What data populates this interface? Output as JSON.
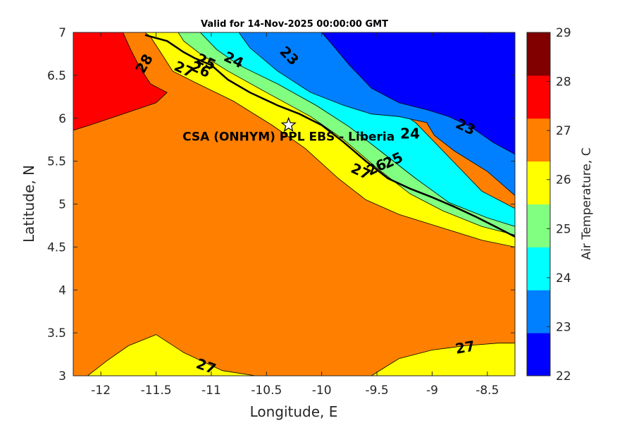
{
  "title": "Valid for 14-Nov-2025 00:00:00 GMT",
  "map": {
    "xlabel": "Longitude, E",
    "ylabel": "Latitude, N",
    "xlim": [
      -12.25,
      -8.25
    ],
    "ylim": [
      3,
      7
    ],
    "x_ticks": [
      -12,
      -11.5,
      -11,
      -10.5,
      -10,
      -9.5,
      -9,
      -8.5
    ],
    "x_tick_labels": [
      "-12",
      "-11.5",
      "-11",
      "-10.5",
      "-10",
      "-9.5",
      "-9",
      "-8.5"
    ],
    "y_ticks": [
      3,
      3.5,
      4,
      4.5,
      5,
      5.5,
      6,
      6.5,
      7
    ],
    "y_tick_labels": [
      "3",
      "3.5",
      "4",
      "4.5",
      "5",
      "5.5",
      "6",
      "6.5",
      "7"
    ],
    "background_color": "#ff8000",
    "field": "Air Temperature, C",
    "regions": [
      {
        "level": "26-27",
        "color": "#ffff00",
        "points": [
          [
            -12.25,
            3.0
          ],
          [
            -12.12,
            3.0
          ],
          [
            -11.95,
            3.17
          ],
          [
            -11.75,
            3.35
          ],
          [
            -11.5,
            3.48
          ],
          [
            -11.25,
            3.27
          ],
          [
            -10.9,
            3.06
          ],
          [
            -10.6,
            3.0
          ]
        ]
      },
      {
        "level": "26-27",
        "color": "#ffff00",
        "points": [
          [
            -9.55,
            3.0
          ],
          [
            -9.3,
            3.2
          ],
          [
            -9.0,
            3.3
          ],
          [
            -8.7,
            3.35
          ],
          [
            -8.4,
            3.38
          ],
          [
            -8.25,
            3.38
          ],
          [
            -8.25,
            3.0
          ]
        ]
      },
      {
        "level": "27-28",
        "color": "#ff0000",
        "points": [
          [
            -12.25,
            7.0
          ],
          [
            -11.8,
            7.0
          ],
          [
            -11.73,
            6.8
          ],
          [
            -11.65,
            6.6
          ],
          [
            -11.55,
            6.4
          ],
          [
            -11.4,
            6.3
          ],
          [
            -11.5,
            6.18
          ],
          [
            -11.8,
            6.05
          ],
          [
            -12.1,
            5.92
          ],
          [
            -12.25,
            5.86
          ]
        ]
      },
      {
        "level": "26-27",
        "color": "#ffff00",
        "points": [
          [
            -11.6,
            7.0
          ],
          [
            -10.3,
            7.0
          ],
          [
            -10.0,
            6.6
          ],
          [
            -9.7,
            6.2
          ],
          [
            -9.4,
            5.85
          ],
          [
            -9.1,
            5.5
          ],
          [
            -8.8,
            5.15
          ],
          [
            -8.5,
            4.85
          ],
          [
            -8.25,
            4.7
          ],
          [
            -8.25,
            4.5
          ],
          [
            -8.55,
            4.58
          ],
          [
            -8.9,
            4.72
          ],
          [
            -9.3,
            4.88
          ],
          [
            -9.6,
            5.05
          ],
          [
            -9.85,
            5.3
          ],
          [
            -10.15,
            5.65
          ],
          [
            -10.45,
            5.92
          ],
          [
            -10.8,
            6.2
          ],
          [
            -11.15,
            6.42
          ],
          [
            -11.35,
            6.55
          ],
          [
            -11.45,
            6.75
          ],
          [
            -11.55,
            6.95
          ]
        ]
      },
      {
        "level": "25-26",
        "color": "#80ff80",
        "points": [
          [
            -11.3,
            7.0
          ],
          [
            -10.2,
            7.0
          ],
          [
            -9.9,
            6.6
          ],
          [
            -9.6,
            6.2
          ],
          [
            -9.3,
            5.85
          ],
          [
            -9.0,
            5.5
          ],
          [
            -8.7,
            5.15
          ],
          [
            -8.4,
            4.85
          ],
          [
            -8.25,
            4.78
          ],
          [
            -8.25,
            4.64
          ],
          [
            -8.55,
            4.74
          ],
          [
            -8.9,
            4.92
          ],
          [
            -9.2,
            5.12
          ],
          [
            -9.5,
            5.42
          ],
          [
            -9.8,
            5.75
          ],
          [
            -10.1,
            6.02
          ],
          [
            -10.5,
            6.3
          ],
          [
            -10.85,
            6.55
          ],
          [
            -11.1,
            6.75
          ],
          [
            -11.25,
            6.9
          ]
        ]
      },
      {
        "level": "24-25",
        "color": "#00ffff",
        "points": [
          [
            -11.1,
            7.0
          ],
          [
            -10.1,
            7.0
          ],
          [
            -9.8,
            6.6
          ],
          [
            -9.5,
            6.25
          ],
          [
            -9.15,
            5.95
          ],
          [
            -8.85,
            5.55
          ],
          [
            -8.55,
            5.15
          ],
          [
            -8.25,
            4.95
          ],
          [
            -8.25,
            4.74
          ],
          [
            -8.5,
            4.84
          ],
          [
            -8.85,
            5.02
          ],
          [
            -9.15,
            5.3
          ],
          [
            -9.45,
            5.6
          ],
          [
            -9.75,
            5.9
          ],
          [
            -10.05,
            6.15
          ],
          [
            -10.4,
            6.4
          ],
          [
            -10.75,
            6.62
          ],
          [
            -10.95,
            6.8
          ]
        ]
      },
      {
        "level": "23-24",
        "color": "#0080ff",
        "points": [
          [
            -10.75,
            7.0
          ],
          [
            -8.25,
            7.0
          ],
          [
            -8.25,
            5.1
          ],
          [
            -8.5,
            5.38
          ],
          [
            -8.8,
            5.62
          ],
          [
            -8.98,
            5.8
          ],
          [
            -9.05,
            5.95
          ],
          [
            -9.3,
            6.02
          ],
          [
            -9.55,
            6.05
          ],
          [
            -9.8,
            6.15
          ],
          [
            -10.1,
            6.3
          ],
          [
            -10.4,
            6.55
          ],
          [
            -10.65,
            6.82
          ]
        ]
      },
      {
        "level": "22-23",
        "color": "#0000ff",
        "points": [
          [
            -10.0,
            7.0
          ],
          [
            -8.25,
            7.0
          ],
          [
            -8.25,
            5.58
          ],
          [
            -8.45,
            5.72
          ],
          [
            -8.65,
            5.9
          ],
          [
            -8.85,
            6.02
          ],
          [
            -9.05,
            6.1
          ],
          [
            -9.3,
            6.18
          ],
          [
            -9.55,
            6.35
          ],
          [
            -9.75,
            6.62
          ],
          [
            -9.9,
            6.85
          ]
        ]
      }
    ],
    "coastline": [
      [
        -11.6,
        6.97
      ],
      [
        -11.4,
        6.9
      ],
      [
        -11.25,
        6.77
      ],
      [
        -11.15,
        6.7
      ],
      [
        -11.0,
        6.62
      ],
      [
        -10.85,
        6.45
      ],
      [
        -10.65,
        6.3
      ],
      [
        -10.4,
        6.15
      ],
      [
        -10.2,
        6.05
      ],
      [
        -10.0,
        5.92
      ],
      [
        -9.8,
        5.72
      ],
      [
        -9.6,
        5.5
      ],
      [
        -9.4,
        5.3
      ],
      [
        -9.2,
        5.18
      ],
      [
        -9.0,
        5.08
      ],
      [
        -8.8,
        4.97
      ],
      [
        -8.6,
        4.85
      ],
      [
        -8.4,
        4.72
      ],
      [
        -8.25,
        4.62
      ]
    ],
    "contour_labels": [
      {
        "text": "28",
        "lon": -11.6,
        "lat": 6.63,
        "angle": -60
      },
      {
        "text": "27",
        "lon": -11.25,
        "lat": 6.56,
        "angle": 25
      },
      {
        "text": "26",
        "lon": -11.1,
        "lat": 6.56,
        "angle": 25
      },
      {
        "text": "25",
        "lon": -11.05,
        "lat": 6.65,
        "angle": 25
      },
      {
        "text": "24",
        "lon": -10.8,
        "lat": 6.67,
        "angle": 25
      },
      {
        "text": "23",
        "lon": -10.3,
        "lat": 6.72,
        "angle": 45
      },
      {
        "text": "24",
        "lon": -9.2,
        "lat": 5.81,
        "angle": 0
      },
      {
        "text": "23",
        "lon": -8.7,
        "lat": 5.89,
        "angle": 25
      },
      {
        "text": "25",
        "lon": -9.35,
        "lat": 5.5,
        "angle": -25
      },
      {
        "text": "26",
        "lon": -9.5,
        "lat": 5.42,
        "angle": -25
      },
      {
        "text": "27",
        "lon": -9.65,
        "lat": 5.37,
        "angle": 25
      },
      {
        "text": "27",
        "lon": -11.05,
        "lat": 3.1,
        "angle": 20
      },
      {
        "text": "27",
        "lon": -8.7,
        "lat": 3.32,
        "angle": -10
      }
    ],
    "station": {
      "label": "CSA (ONHYM) PPL EBS  - Liberia",
      "lon": -10.3,
      "lat": 5.92
    }
  },
  "colorbar": {
    "label": "Air Temperature, C",
    "levels": [
      22,
      23,
      24,
      25,
      26,
      27,
      28,
      29
    ],
    "tick_labels": [
      "22",
      "23",
      "24",
      "25",
      "26",
      "27",
      "28",
      "29"
    ],
    "colors": [
      "#0000ff",
      "#0080ff",
      "#00ffff",
      "#80ff80",
      "#ffff00",
      "#ff8000",
      "#ff0000",
      "#800000"
    ]
  }
}
